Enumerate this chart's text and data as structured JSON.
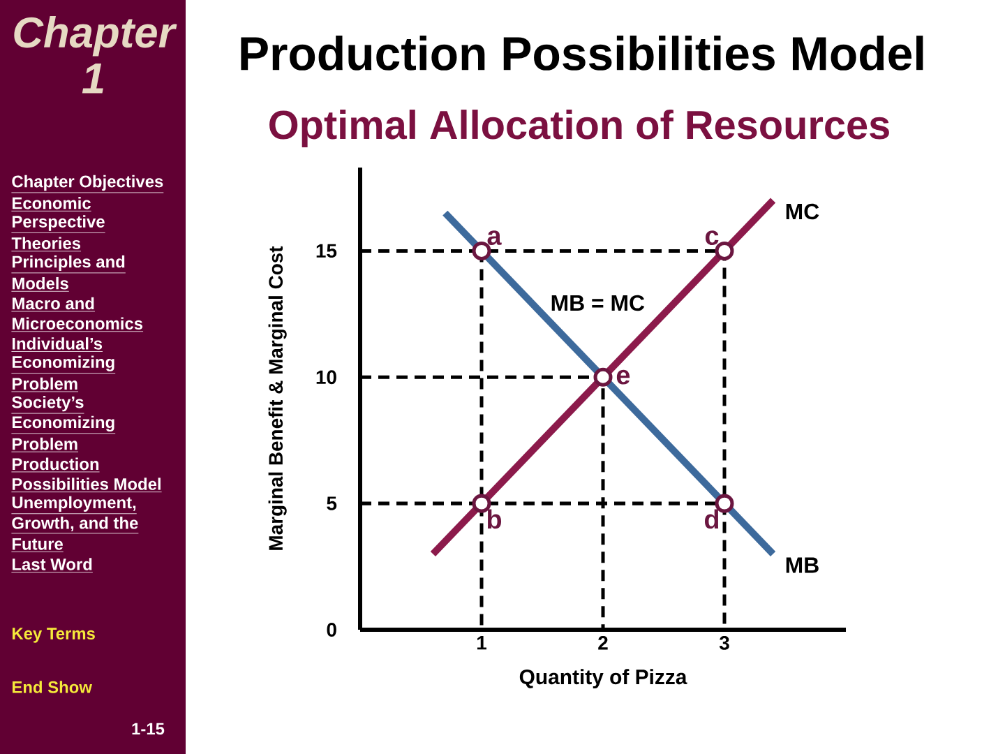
{
  "chart_data": {
    "type": "line",
    "title": "Production Possibilities Model",
    "subtitle": "Optimal Allocation of Resources",
    "xlabel": "Quantity of Pizza",
    "ylabel": "Marginal Benefit & Marginal Cost",
    "xlim": [
      0,
      4
    ],
    "xticks": [
      1,
      2,
      3
    ],
    "ylim": [
      0,
      18.3
    ],
    "yticks": [
      0,
      5,
      10,
      15
    ],
    "line_style": "solid",
    "marker": "none",
    "series": [
      {
        "line_style": "dashed",
        "color": "#000000",
        "x": [
          0,
          3,
          3
        ],
        "values": [
          15,
          15,
          0
        ]
      },
      {
        "line_style": "dashed",
        "color": "#000000",
        "x": [
          0,
          2,
          2
        ],
        "values": [
          10,
          10,
          0
        ]
      },
      {
        "line_style": "dashed",
        "color": "#000000",
        "x": [
          0,
          3
        ],
        "values": [
          5,
          5
        ]
      },
      {
        "line_style": "dashed",
        "color": "#000000",
        "x": [
          1,
          1
        ],
        "values": [
          15,
          0
        ]
      },
      {
        "name": "MB",
        "color": "#3d6a9c",
        "x": [
          0.7,
          3.4
        ],
        "values": [
          16.5,
          3
        ]
      },
      {
        "name": "MC",
        "color": "#8c1a4b",
        "x": [
          0.6,
          3.4
        ],
        "values": [
          3,
          17
        ]
      },
      {
        "type": "scatter",
        "marker": "circle",
        "color": "#6b1640",
        "x": [
          1,
          3,
          2,
          1,
          3
        ],
        "values": [
          15,
          15,
          10,
          5,
          5
        ]
      }
    ],
    "annotations": [
      {
        "text": "a",
        "x": 1,
        "y": 15
      },
      {
        "text": "c",
        "x": 3,
        "y": 15
      },
      {
        "text": "e",
        "x": 2,
        "y": 10
      },
      {
        "text": "b",
        "x": 1,
        "y": 5
      },
      {
        "text": "d",
        "x": 3,
        "y": 5
      },
      "MB = MC",
      "Chapter 1",
      "Chapter Objectives",
      "Economic",
      "Perspective",
      "Theories",
      "Principles and",
      "Models",
      "Macro and",
      "Microeconomics",
      "Individual’s",
      "Economizing",
      "Problem",
      "Society’s",
      "Economizing",
      "Problem",
      "Production",
      "Possibilities Model",
      "Unemployment,",
      "Growth, and the",
      "Future",
      "Last Word",
      "Key Terms",
      "End Show",
      "1-15"
    ]
  }
}
